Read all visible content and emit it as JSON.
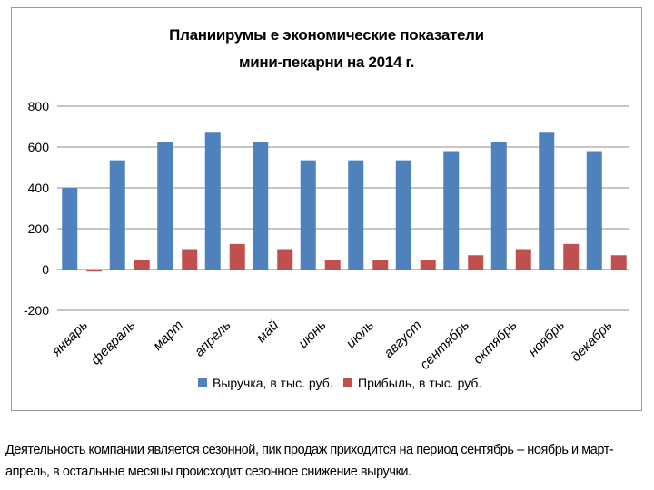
{
  "chart_data": {
    "type": "bar",
    "title_lines": [
      "Планиирумы е  экономические показатели",
      "мини-пекарни на 2014 г."
    ],
    "categories": [
      "январь",
      "февраль",
      "март",
      "апрель",
      "май",
      "июнь",
      "июль",
      "август",
      "сентябрь",
      "октябрь",
      "ноябрь",
      "декабрь"
    ],
    "series": [
      {
        "name": "Выручка, в  тыс. руб.",
        "color": "#4f81bd",
        "values": [
          400,
          535,
          625,
          670,
          625,
          535,
          535,
          535,
          580,
          625,
          670,
          580
        ]
      },
      {
        "name": "Прибыль, в тыс. руб.",
        "color": "#c0504d",
        "values": [
          -10,
          45,
          100,
          125,
          100,
          45,
          45,
          45,
          70,
          100,
          125,
          70
        ]
      }
    ],
    "ylim": [
      -200,
      800
    ],
    "yticks": [
      -200,
      0,
      200,
      400,
      600,
      800
    ],
    "ytick_labels": [
      "-200",
      "0",
      "200",
      "400",
      "600",
      "800"
    ],
    "grid": true,
    "legend_position": "bottom"
  },
  "caption": {
    "line1": "Деятельность компании является сезонной, пик продаж приходится на период сентябрь – ноябрь и март-",
    "line2": "апрель, в остальные месяцы происходит сезонное снижение выручки."
  }
}
